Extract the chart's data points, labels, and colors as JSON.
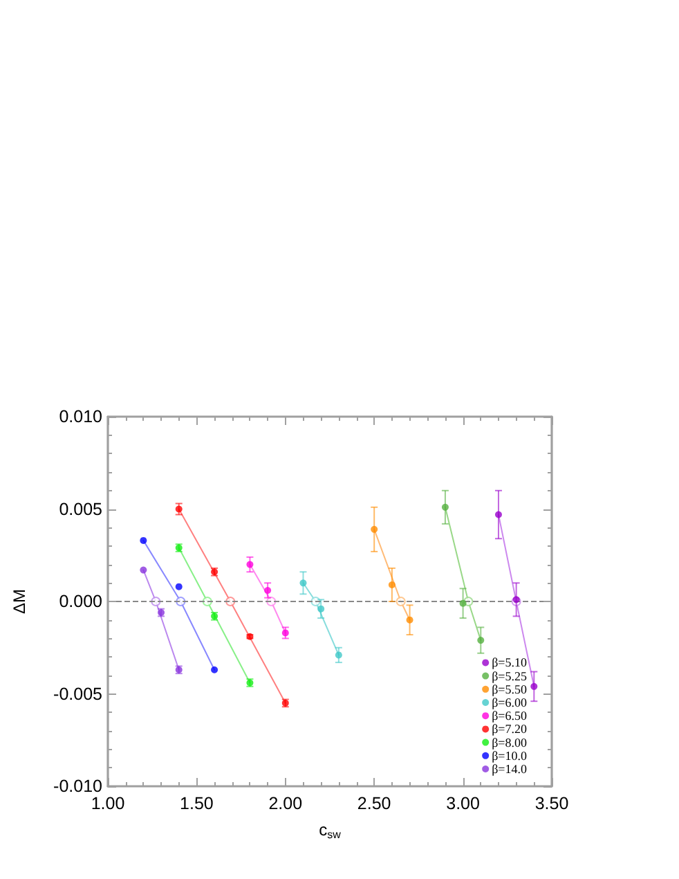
{
  "chart_data": {
    "type": "scatter",
    "xlabel": "c$_{sw}$",
    "ylabel": "ΔM",
    "xlim": [
      1,
      3.5
    ],
    "ylim": [
      -0.01,
      0.01
    ],
    "xticks": [
      {
        "value": 1,
        "label": "1.00"
      },
      {
        "value": 1.1,
        "label": null
      },
      {
        "value": 1.2,
        "label": null
      },
      {
        "value": 1.3,
        "label": null
      },
      {
        "value": 1.4,
        "label": null
      },
      {
        "value": 1.5,
        "label": "1.50"
      },
      {
        "value": 1.6,
        "label": null
      },
      {
        "value": 1.7,
        "label": null
      },
      {
        "value": 1.8,
        "label": null
      },
      {
        "value": 1.9,
        "label": null
      },
      {
        "value": 2,
        "label": "2.00"
      },
      {
        "value": 2.1,
        "label": null
      },
      {
        "value": 2.2,
        "label": null
      },
      {
        "value": 2.3,
        "label": null
      },
      {
        "value": 2.4,
        "label": null
      },
      {
        "value": 2.5,
        "label": "2.50"
      },
      {
        "value": 2.6,
        "label": null
      },
      {
        "value": 2.7,
        "label": null
      },
      {
        "value": 2.8,
        "label": null
      },
      {
        "value": 2.9,
        "label": null
      },
      {
        "value": 3,
        "label": "3.00"
      },
      {
        "value": 3.1,
        "label": null
      },
      {
        "value": 3.2,
        "label": null
      },
      {
        "value": 3.3,
        "label": null
      },
      {
        "value": 3.4,
        "label": null
      },
      {
        "value": 3.5,
        "label": "3.50"
      }
    ],
    "yticks": [
      {
        "value": -0.01,
        "label": "-0.010"
      },
      {
        "value": -0.009,
        "label": null
      },
      {
        "value": -0.008,
        "label": null
      },
      {
        "value": -0.007,
        "label": null
      },
      {
        "value": -0.006,
        "label": null
      },
      {
        "value": -0.005,
        "label": "-0.005"
      },
      {
        "value": -0.004,
        "label": null
      },
      {
        "value": -0.003,
        "label": null
      },
      {
        "value": -0.002,
        "label": null
      },
      {
        "value": -0.001,
        "label": null
      },
      {
        "value": 0,
        "label": "0.000"
      },
      {
        "value": 0.001,
        "label": null
      },
      {
        "value": 0.002,
        "label": null
      },
      {
        "value": 0.003,
        "label": null
      },
      {
        "value": 0.004,
        "label": null
      },
      {
        "value": 0.005,
        "label": "0.005"
      },
      {
        "value": 0.006,
        "label": null
      },
      {
        "value": 0.007,
        "label": null
      },
      {
        "value": 0.008,
        "label": null
      },
      {
        "value": 0.009,
        "label": null
      },
      {
        "value": 0.01,
        "label": "0.010"
      }
    ],
    "legend": "bottom right",
    "marker": "circle",
    "ref_lines": [
      {
        "axis": "y",
        "value": 0,
        "color": "#888888",
        "line_style": "dashed"
      }
    ],
    "series": [
      {
        "name": "β=5.10",
        "color": "#9900cc",
        "x": [
          3.2,
          3.3,
          3.4
        ],
        "values": [
          0.0047,
          0.0001,
          -0.0046
        ],
        "errors": [
          0.0013,
          0.0009,
          0.0008
        ]
      },
      {
        "name": "β=5.25",
        "color": "#55b040",
        "x": [
          2.9,
          3.0,
          3.1
        ],
        "values": [
          0.0051,
          -0.0001,
          -0.0021
        ],
        "errors": [
          0.0009,
          0.0008,
          0.0007
        ]
      },
      {
        "name": "β=5.50",
        "color": "#ff8c00",
        "x": [
          2.5,
          2.6,
          2.7
        ],
        "values": [
          0.0039,
          0.0009,
          -0.001
        ],
        "errors": [
          0.0012,
          0.0009,
          0.0008
        ]
      },
      {
        "name": "β=6.00",
        "color": "#40c8c8",
        "x": [
          2.1,
          2.2,
          2.3
        ],
        "values": [
          0.001,
          -0.0004,
          -0.0029
        ],
        "errors": [
          0.0006,
          0.0005,
          0.0004
        ]
      },
      {
        "name": "β=6.50",
        "color": "#ff00dd",
        "x": [
          1.8,
          1.9,
          2.0
        ],
        "values": [
          0.002,
          0.0006,
          -0.0017
        ],
        "errors": [
          0.0004,
          0.0004,
          0.0003
        ]
      },
      {
        "name": "β=7.20",
        "color": "#ff0000",
        "x": [
          1.4,
          1.6,
          1.8,
          2.0
        ],
        "values": [
          0.005,
          0.0016,
          -0.0019,
          -0.0055
        ],
        "errors": [
          0.0003,
          0.0002,
          0.0001,
          0.0002
        ]
      },
      {
        "name": "β=8.00",
        "color": "#11ee11",
        "x": [
          1.4,
          1.6,
          1.8
        ],
        "values": [
          0.0029,
          -0.0008,
          -0.0044
        ],
        "errors": [
          0.0002,
          0.0002,
          0.0002
        ]
      },
      {
        "name": "β=10.0",
        "color": "#0000ff",
        "x": [
          1.2,
          1.4,
          1.6
        ],
        "values": [
          0.0033,
          0.0008,
          -0.0037
        ]
      },
      {
        "name": "β=14.0",
        "color": "#8833dd",
        "x": [
          1.2,
          1.3,
          1.4
        ],
        "values": [
          0.0017,
          -0.0006,
          -0.0037
        ],
        "errors": [
          null,
          0.0002,
          0.0002
        ]
      },
      {
        "type": "line",
        "color": "#cc88ee",
        "marker": "none",
        "x": [
          3.2,
          3.3,
          3.4
        ],
        "values": [
          0.0047,
          0,
          -0.0046
        ]
      },
      {
        "type": "line",
        "color": "#99d888",
        "marker": "none",
        "x": [
          2.9,
          3.03,
          3.1
        ],
        "values": [
          0.0051,
          0,
          -0.0021
        ]
      },
      {
        "type": "line",
        "color": "#ffbb77",
        "marker": "none",
        "x": [
          2.5,
          2.65,
          2.7
        ],
        "values": [
          0.0039,
          0,
          -0.001
        ]
      },
      {
        "type": "line",
        "color": "#88dddd",
        "marker": "none",
        "x": [
          2.1,
          2.17,
          2.3
        ],
        "values": [
          0.001,
          0,
          -0.0029
        ]
      },
      {
        "type": "line",
        "color": "#ff88ee",
        "marker": "none",
        "x": [
          1.8,
          1.92,
          2.0
        ],
        "values": [
          0.002,
          0,
          -0.0017
        ]
      },
      {
        "type": "line",
        "color": "#ff8080",
        "marker": "none",
        "x": [
          1.4,
          1.69,
          2.0
        ],
        "values": [
          0.005,
          0,
          -0.0055
        ]
      },
      {
        "type": "line",
        "color": "#88f088",
        "marker": "none",
        "x": [
          1.4,
          1.56,
          1.8
        ],
        "values": [
          0.0029,
          0,
          -0.0044
        ]
      },
      {
        "type": "line",
        "color": "#8888ff",
        "marker": "none",
        "x": [
          1.2,
          1.41,
          1.6
        ],
        "values": [
          0.0033,
          0,
          -0.0037
        ]
      },
      {
        "type": "line",
        "color": "#bb88ee",
        "marker": "none",
        "x": [
          1.2,
          1.27,
          1.4
        ],
        "values": [
          0.0017,
          0,
          -0.0037
        ]
      },
      {
        "marker": "circle",
        "x": [
          3.3,
          3.03,
          2.65,
          2.17,
          1.92,
          1.69,
          1.56,
          1.41,
          1.27
        ],
        "values": [
          0,
          0,
          0,
          0,
          0,
          0,
          0,
          0,
          0
        ],
        "colors": [
          "#cc88ee",
          "#99d888",
          "#ffbb77",
          "#88dddd",
          "#ff88ee",
          "#ff8080",
          "#88f088",
          "#8888ff",
          "#bb88ee"
        ]
      }
    ]
  }
}
